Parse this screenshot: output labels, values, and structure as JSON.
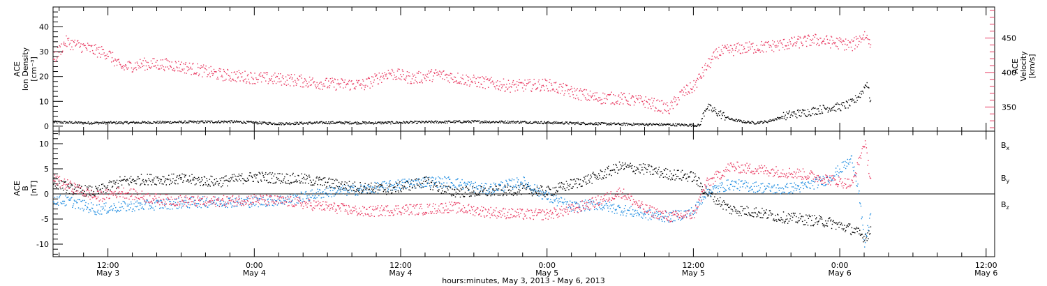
{
  "colors": {
    "black": "#000000",
    "pink": "#e8375f",
    "blue": "#1a8ae0"
  },
  "figure": {
    "xlabel": "hours:minutes, May  3, 2013 - May  6, 2013"
  },
  "chart_data": [
    {
      "type": "scatter",
      "panel": "top",
      "ylabel": [
        "ACE",
        "Ion Density",
        "[cm⁻³]"
      ],
      "y2label": [
        "ACE",
        "Velocity",
        "[km/s]"
      ],
      "ylim": [
        -2,
        48
      ],
      "yticks": [
        0,
        10,
        20,
        30,
        40
      ],
      "y2lim": [
        315,
        495
      ],
      "y2ticks": [
        350,
        400,
        450
      ],
      "x_tick_labels": [
        {
          "time": "12:00",
          "date": "May 3"
        },
        {
          "time": "0:00",
          "date": "May 4"
        },
        {
          "time": "12:00",
          "date": "May 4"
        },
        {
          "time": "0:00",
          "date": "May 5"
        },
        {
          "time": "12:00",
          "date": "May 5"
        },
        {
          "time": "0:00",
          "date": "May 6"
        },
        {
          "time": "12:00",
          "date": "May 6"
        }
      ],
      "x_hours_range": [
        7.5,
        84.7
      ],
      "data_end_hour": 74.5,
      "series": [
        {
          "axis": "left",
          "color": "#000000",
          "x_hours": [
            7.5,
            10,
            14,
            18,
            22,
            26,
            30,
            34,
            38,
            42,
            46,
            50,
            54,
            58,
            60.5,
            61,
            62,
            63,
            64,
            65,
            66,
            67,
            68,
            69,
            70,
            71,
            72,
            73,
            73.8,
            74.2,
            74.5
          ],
          "values": [
            1.8,
            1.5,
            1.6,
            1.8,
            2.0,
            1.2,
            1.6,
            1.5,
            1.8,
            2.0,
            1.8,
            1.4,
            1.0,
            0.8,
            0.5,
            8.0,
            5.5,
            3.0,
            2.0,
            1.5,
            2.0,
            3.5,
            5.0,
            5.5,
            6.5,
            7.5,
            8.0,
            9.5,
            14.0,
            18.0,
            10.0
          ]
        },
        {
          "axis": "right",
          "color": "#e8375f",
          "x_hours": [
            7.5,
            8.5,
            9.5,
            11,
            12,
            13,
            15,
            17,
            19,
            21,
            24,
            27,
            30,
            33,
            35,
            37,
            39,
            42,
            45,
            48,
            50,
            52,
            54,
            56,
            58,
            59,
            60,
            61,
            62,
            63,
            64,
            66,
            68,
            70,
            72,
            73,
            74,
            74.5
          ],
          "values": [
            420,
            445,
            440,
            432,
            428,
            408,
            413,
            412,
            406,
            398,
            393,
            390,
            384,
            383,
            400,
            392,
            398,
            388,
            381,
            383,
            372,
            364,
            363,
            358,
            348,
            370,
            380,
            408,
            430,
            433,
            436,
            438,
            443,
            448,
            443,
            440,
            455,
            445
          ]
        }
      ]
    },
    {
      "type": "scatter",
      "panel": "bottom",
      "ylabel": [
        "ACE",
        "B",
        "[nT]"
      ],
      "ylim": [
        -12.5,
        12.5
      ],
      "yticks": [
        -10,
        -5,
        0,
        5,
        10
      ],
      "zero_line": true,
      "legend_position": "right",
      "series": [
        {
          "name": "B",
          "subscript": "x",
          "color": "#000000",
          "x_hours": [
            7.5,
            9,
            11,
            13,
            15,
            18,
            21,
            24,
            28,
            32,
            35,
            38,
            40,
            43,
            46,
            48,
            50,
            52,
            54,
            56,
            58,
            60,
            61,
            63,
            65,
            67,
            69,
            71,
            73,
            74,
            74.5
          ],
          "values": [
            2.5,
            1.0,
            0.5,
            2.5,
            3.0,
            3.0,
            2.5,
            3.5,
            3.0,
            1.5,
            1.0,
            2.5,
            0.5,
            0.5,
            1.0,
            0.5,
            2.0,
            3.5,
            5.5,
            5.0,
            4.0,
            3.5,
            0.5,
            -3.0,
            -3.5,
            -4.5,
            -5.0,
            -5.5,
            -7.0,
            -8.5,
            -7.5
          ]
        },
        {
          "name": "B",
          "subscript": "y",
          "color": "#1a8ae0",
          "x_hours": [
            7.5,
            9,
            11,
            13,
            16,
            20,
            24,
            27,
            30,
            33,
            36,
            38,
            40,
            43,
            46,
            48,
            50,
            52,
            54,
            56,
            58,
            60,
            61,
            63,
            65,
            67,
            69,
            71,
            72,
            73,
            73.5,
            74,
            74.5
          ],
          "values": [
            -1.0,
            -1.5,
            -3.0,
            -2.5,
            -2.0,
            -1.5,
            -1.5,
            -1.0,
            0.5,
            1.0,
            2.0,
            2.5,
            2.5,
            1.0,
            2.5,
            -0.5,
            -2.5,
            -2.0,
            -3.0,
            -4.0,
            -4.5,
            -3.5,
            0.5,
            2.0,
            1.5,
            1.0,
            1.5,
            3.0,
            5.0,
            7.0,
            1.0,
            -10.0,
            -4.0
          ]
        },
        {
          "name": "B",
          "subscript": "z",
          "color": "#e8375f",
          "x_hours": [
            7.5,
            9,
            11,
            13,
            16,
            20,
            24,
            27,
            30,
            33,
            36,
            38,
            40,
            43,
            46,
            48,
            50,
            52,
            54,
            56,
            58,
            60,
            61,
            63,
            65,
            67,
            69,
            71,
            73,
            74,
            74.5
          ],
          "values": [
            3.0,
            1.5,
            -0.5,
            0.5,
            -1.0,
            -1.5,
            -1.0,
            -1.5,
            -2.5,
            -3.5,
            -3.0,
            -3.0,
            -2.5,
            -3.5,
            -4.0,
            -4.0,
            -3.0,
            -1.5,
            0.5,
            -3.0,
            -4.5,
            -4.0,
            2.0,
            5.5,
            5.0,
            4.5,
            4.0,
            3.0,
            2.0,
            10.5,
            3.0
          ]
        }
      ]
    }
  ]
}
